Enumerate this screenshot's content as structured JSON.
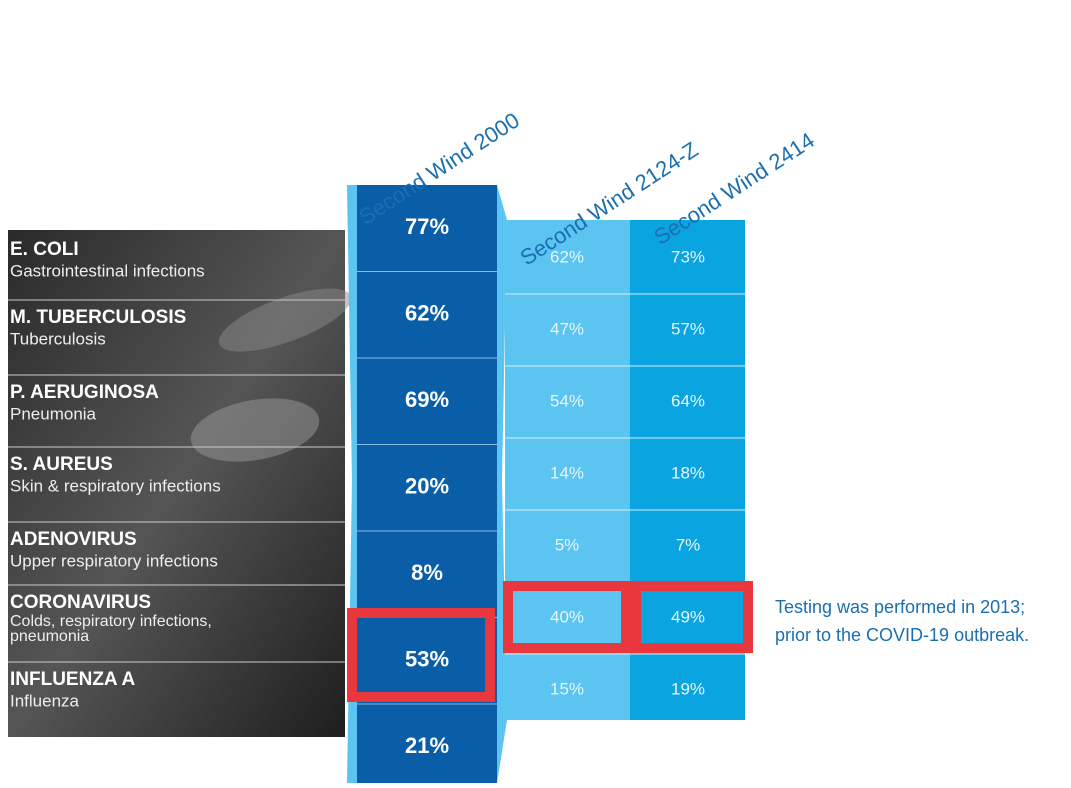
{
  "columns": [
    "Second Wind 2000",
    "Second Wind 2124-Z",
    "Second Wind 2414"
  ],
  "rows": [
    {
      "name": "E. COLI",
      "description": "Gastrointestinal infections",
      "values": [
        "77%",
        "62%",
        "73%"
      ]
    },
    {
      "name": "M. TUBERCULOSIS",
      "description": "Tuberculosis",
      "values": [
        "62%",
        "47%",
        "57%"
      ]
    },
    {
      "name": "P. AERUGINOSA",
      "description": "Pneumonia",
      "values": [
        "69%",
        "54%",
        "64%"
      ]
    },
    {
      "name": "S. AUREUS",
      "description": "Skin & respiratory infections",
      "values": [
        "20%",
        "14%",
        "18%"
      ]
    },
    {
      "name": "ADENOVIRUS",
      "description": "Upper respiratory infections",
      "values": [
        "8%",
        "5%",
        "7%"
      ]
    },
    {
      "name": "CORONAVIRUS",
      "description": "Colds, respiratory infections, pneumonia",
      "values": [
        "53%",
        "40%",
        "49%"
      ]
    },
    {
      "name": "INFLUENZA A",
      "description": "Influenza",
      "values": [
        "21%",
        "15%",
        "19%"
      ]
    }
  ],
  "note": [
    "Testing was performed in 2013;",
    "prior to the COVID-19 outbreak."
  ]
}
